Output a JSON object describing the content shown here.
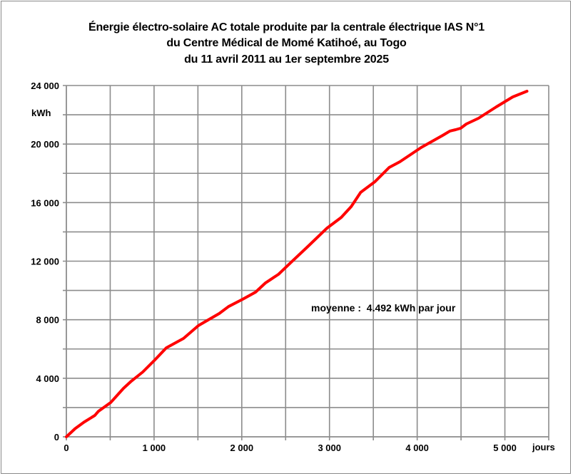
{
  "chart_data": {
    "type": "line",
    "title": [
      "Énergie électro-solaire AC totale produite par la centrale électrique IAS N°1",
      "du Centre Médical de Momé Katihoé, au Togo",
      "du 11 avril 2011 au 1er septembre 2025"
    ],
    "xlabel": "jours",
    "ylabel": "kWh",
    "xlim": [
      0,
      5500
    ],
    "ylim": [
      0,
      24000
    ],
    "x_ticks": [
      0,
      1000,
      2000,
      3000,
      4000,
      5000
    ],
    "x_tick_labels": [
      "0",
      "1 000",
      "2 000",
      "3 000",
      "4 000",
      "5 000"
    ],
    "x_grid_step": 500,
    "y_ticks": [
      0,
      4000,
      8000,
      12000,
      16000,
      20000,
      24000
    ],
    "y_tick_labels": [
      "0",
      "4 000",
      "8 000",
      "12 000",
      "16 000",
      "20 000",
      "24 000"
    ],
    "y_grid_step": 2000,
    "grid": true,
    "annotation": "moyenne :  4.492 kWh par jour",
    "series": [
      {
        "name": "Énergie AC totale",
        "color": "#ff0000",
        "x": [
          0,
          100,
          200,
          325,
          366,
          505,
          651,
          740,
          871,
          1010,
          1140,
          1335,
          1506,
          1743,
          1849,
          2011,
          2157,
          2272,
          2418,
          2581,
          2744,
          2972,
          3134,
          3248,
          3355,
          3518,
          3681,
          3803,
          4047,
          4291,
          4373,
          4438,
          4495,
          4560,
          4699,
          4902,
          5090,
          5252
        ],
        "y": [
          0,
          560,
          1000,
          1460,
          1750,
          2340,
          3310,
          3800,
          4430,
          5260,
          6080,
          6720,
          7600,
          8420,
          8900,
          9400,
          9880,
          10520,
          11100,
          12030,
          12950,
          14260,
          14990,
          15730,
          16700,
          17430,
          18400,
          18790,
          19770,
          20590,
          20890,
          20980,
          21080,
          21370,
          21760,
          22540,
          23220,
          23610
        ]
      }
    ]
  }
}
